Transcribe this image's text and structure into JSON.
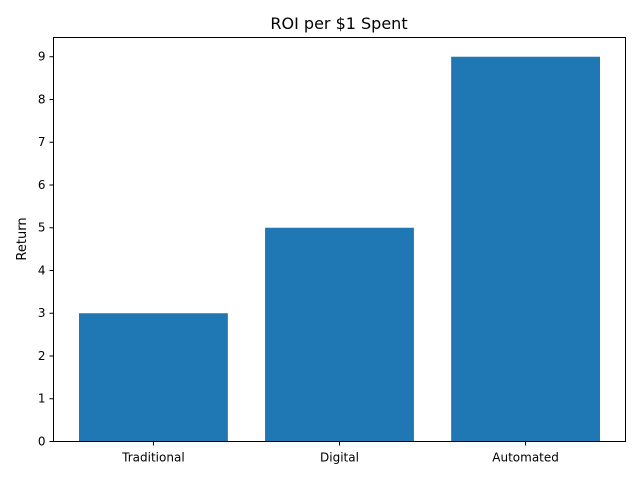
{
  "chart_data": {
    "type": "bar",
    "title": "ROI per $1 Spent",
    "xlabel": "",
    "ylabel": "Return",
    "categories": [
      "Traditional",
      "Digital",
      "Automated"
    ],
    "values": [
      3,
      5,
      9
    ],
    "ylim": [
      0,
      9.45
    ],
    "yticks": [
      0,
      1,
      2,
      3,
      4,
      5,
      6,
      7,
      8,
      9
    ],
    "grid": false,
    "bar_color": "#1f77b4"
  }
}
